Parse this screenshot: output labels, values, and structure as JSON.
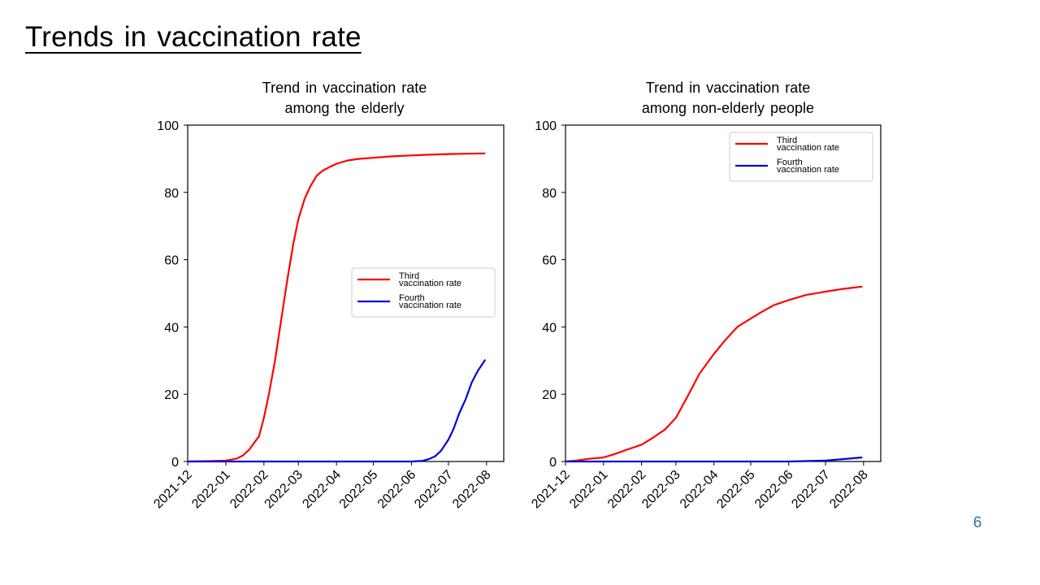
{
  "slide": {
    "title": "Trends in vaccination rate",
    "page_number": "6"
  },
  "colors": {
    "third": "#ff0000",
    "fourth": "#0000dd",
    "page_number": "#2e75b6"
  },
  "chart_data": [
    {
      "type": "line",
      "title_lines": [
        "Trend in vaccination rate",
        "among the elderly"
      ],
      "xlabel": "",
      "ylabel": "",
      "x_ticks": [
        "2021-12",
        "2022-01",
        "2022-02",
        "2022-03",
        "2022-04",
        "2022-05",
        "2022-06",
        "2022-07",
        "2022-08"
      ],
      "y_ticks": [
        0,
        20,
        40,
        60,
        80,
        100
      ],
      "xlim": [
        "2021-12-01",
        "2022-08-15"
      ],
      "ylim": [
        0,
        100
      ],
      "grid": false,
      "legend_position": "center-right",
      "series": [
        {
          "name_lines": [
            "Third",
            "vaccination rate"
          ],
          "color": "#ff0000",
          "x": [
            "2021-12-01",
            "2021-12-15",
            "2022-01-01",
            "2022-01-05",
            "2022-01-10",
            "2022-01-15",
            "2022-01-20",
            "2022-01-24",
            "2022-01-28",
            "2022-02-01",
            "2022-02-05",
            "2022-02-10",
            "2022-02-15",
            "2022-02-20",
            "2022-02-25",
            "2022-03-01",
            "2022-03-06",
            "2022-03-11",
            "2022-03-16",
            "2022-03-21",
            "2022-03-26",
            "2022-04-01",
            "2022-04-10",
            "2022-04-20",
            "2022-05-01",
            "2022-05-15",
            "2022-06-01",
            "2022-06-15",
            "2022-07-01",
            "2022-07-15",
            "2022-07-31"
          ],
          "y": [
            0,
            0.1,
            0.3,
            0.5,
            0.9,
            1.8,
            3.5,
            5.5,
            7.5,
            13,
            20,
            30,
            42,
            54,
            65,
            72,
            78,
            82,
            85,
            86.5,
            87.5,
            88.5,
            89.5,
            90,
            90.3,
            90.7,
            91,
            91.2,
            91.4,
            91.5,
            91.6
          ]
        },
        {
          "name_lines": [
            "Fourth",
            "vaccination rate"
          ],
          "color": "#0000dd",
          "x": [
            "2021-12-01",
            "2022-06-01",
            "2022-06-10",
            "2022-06-15",
            "2022-06-20",
            "2022-06-25",
            "2022-07-01",
            "2022-07-05",
            "2022-07-10",
            "2022-07-15",
            "2022-07-20",
            "2022-07-25",
            "2022-07-31"
          ],
          "y": [
            0,
            0,
            0.2,
            0.7,
            1.5,
            3.2,
            6.5,
            9.5,
            14.5,
            18.5,
            23.5,
            27,
            30.3
          ]
        }
      ]
    },
    {
      "type": "line",
      "title_lines": [
        "Trend in vaccination rate",
        "among non-elderly people"
      ],
      "xlabel": "",
      "ylabel": "",
      "x_ticks": [
        "2021-12",
        "2022-01",
        "2022-02",
        "2022-03",
        "2022-04",
        "2022-05",
        "2022-06",
        "2022-07",
        "2022-08"
      ],
      "y_ticks": [
        0,
        20,
        40,
        60,
        80,
        100
      ],
      "xlim": [
        "2021-12-01",
        "2022-08-15"
      ],
      "ylim": [
        0,
        100
      ],
      "grid": false,
      "legend_position": "top-right",
      "series": [
        {
          "name_lines": [
            "Third",
            "vaccination rate"
          ],
          "color": "#ff0000",
          "x": [
            "2021-12-01",
            "2021-12-10",
            "2021-12-20",
            "2022-01-01",
            "2022-01-10",
            "2022-01-20",
            "2022-02-01",
            "2022-02-10",
            "2022-02-20",
            "2022-03-01",
            "2022-03-10",
            "2022-03-20",
            "2022-04-01",
            "2022-04-10",
            "2022-04-20",
            "2022-05-01",
            "2022-05-10",
            "2022-05-20",
            "2022-06-01",
            "2022-06-15",
            "2022-07-01",
            "2022-07-15",
            "2022-07-31"
          ],
          "y": [
            0,
            0.3,
            0.8,
            1.2,
            2.2,
            3.5,
            5,
            7,
            9.5,
            13,
            19,
            26,
            32,
            36,
            40,
            42.5,
            44.5,
            46.5,
            48,
            49.5,
            50.5,
            51.3,
            52
          ]
        },
        {
          "name_lines": [
            "Fourth",
            "vaccination rate"
          ],
          "color": "#0000dd",
          "x": [
            "2021-12-01",
            "2022-06-01",
            "2022-07-01",
            "2022-07-15",
            "2022-07-31"
          ],
          "y": [
            0,
            0,
            0.3,
            0.7,
            1.2
          ]
        }
      ]
    }
  ]
}
